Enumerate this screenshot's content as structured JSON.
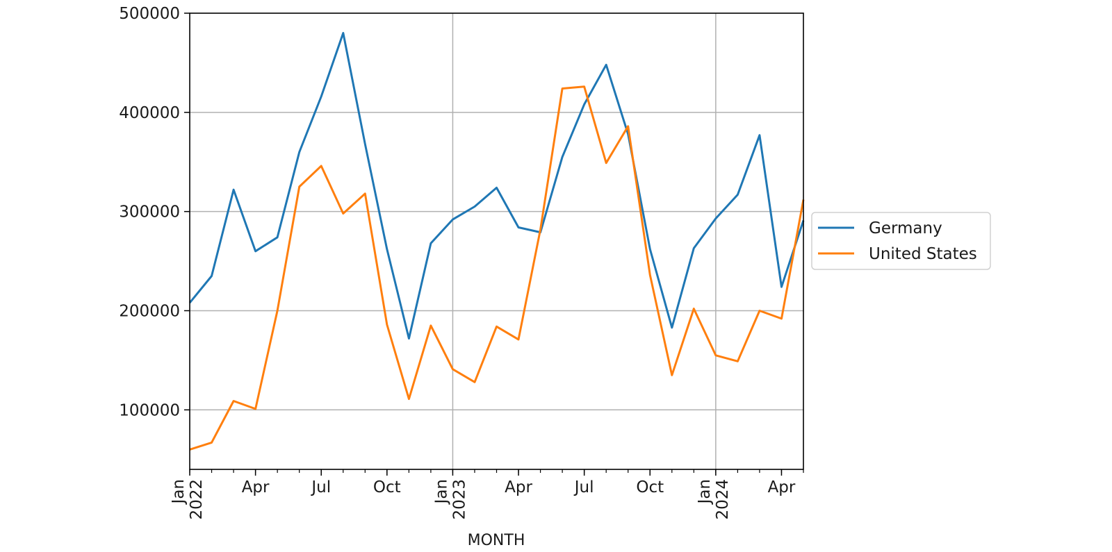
{
  "chart_data": {
    "type": "line",
    "title": "",
    "xlabel": "MONTH",
    "ylabel": "",
    "x": [
      "2022-01",
      "2022-02",
      "2022-03",
      "2022-04",
      "2022-05",
      "2022-06",
      "2022-07",
      "2022-08",
      "2022-09",
      "2022-10",
      "2022-11",
      "2022-12",
      "2023-01",
      "2023-02",
      "2023-03",
      "2023-04",
      "2023-05",
      "2023-06",
      "2023-07",
      "2023-08",
      "2023-09",
      "2023-10",
      "2023-11",
      "2023-12",
      "2024-01",
      "2024-02",
      "2024-03",
      "2024-04",
      "2024-05"
    ],
    "ylim": [
      40000,
      500000
    ],
    "yticks": [
      100000,
      200000,
      300000,
      400000,
      500000
    ],
    "ytick_labels": [
      "100000",
      "200000",
      "300000",
      "400000",
      "500000"
    ],
    "xticks": [
      {
        "x": "2022-01",
        "lines": [
          "Jan",
          "2022"
        ]
      },
      {
        "x": "2022-04",
        "lines": [
          "Apr"
        ]
      },
      {
        "x": "2022-07",
        "lines": [
          "Jul"
        ]
      },
      {
        "x": "2022-10",
        "lines": [
          "Oct"
        ]
      },
      {
        "x": "2023-01",
        "lines": [
          "Jan",
          "2023"
        ]
      },
      {
        "x": "2023-04",
        "lines": [
          "Apr"
        ]
      },
      {
        "x": "2023-07",
        "lines": [
          "Jul"
        ]
      },
      {
        "x": "2023-10",
        "lines": [
          "Oct"
        ]
      },
      {
        "x": "2024-01",
        "lines": [
          "Jan",
          "2024"
        ]
      },
      {
        "x": "2024-04",
        "lines": [
          "Apr"
        ]
      }
    ],
    "grid": true,
    "legend_position": "right, outside",
    "series": [
      {
        "name": "Germany",
        "color": "#1f77b4",
        "values": [
          208000,
          235000,
          322000,
          260000,
          274000,
          360000,
          416000,
          480000,
          368000,
          262000,
          172000,
          268000,
          292000,
          305000,
          324000,
          284000,
          279000,
          355000,
          408000,
          448000,
          378000,
          262000,
          183000,
          263000,
          293000,
          317000,
          377000,
          224000,
          291000
        ]
      },
      {
        "name": "United States",
        "color": "#ff7f0e",
        "values": [
          60000,
          67000,
          109000,
          101000,
          200000,
          325000,
          346000,
          298000,
          318000,
          186000,
          111000,
          185000,
          141000,
          128000,
          184000,
          171000,
          282000,
          424000,
          426000,
          349000,
          386000,
          236000,
          135000,
          202000,
          155000,
          149000,
          200000,
          192000,
          312000
        ]
      }
    ]
  }
}
